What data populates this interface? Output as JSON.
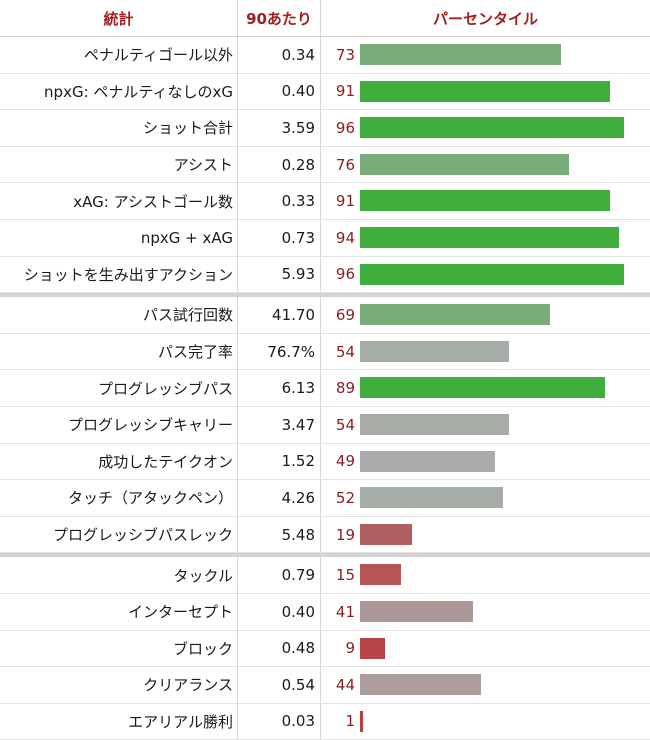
{
  "header": {
    "stat": "統計",
    "per90": "90あたり",
    "percentile": "パーセンタイル"
  },
  "groups": [
    {
      "rows": [
        {
          "stat": "ペナルティゴール以外",
          "per90": "0.34",
          "percentile": 73,
          "color": "#7aab7a"
        },
        {
          "stat": "npxG: ペナルティなしのxG",
          "per90": "0.40",
          "percentile": 91,
          "color": "#3fae3f"
        },
        {
          "stat": "ショット合計",
          "per90": "3.59",
          "percentile": 96,
          "color": "#3fae3f"
        },
        {
          "stat": "アシスト",
          "per90": "0.28",
          "percentile": 76,
          "color": "#7aab7a"
        },
        {
          "stat": "xAG: アシストゴール数",
          "per90": "0.33",
          "percentile": 91,
          "color": "#3fae3f"
        },
        {
          "stat": "npxG + xAG",
          "per90": "0.73",
          "percentile": 94,
          "color": "#3fae3f"
        },
        {
          "stat": "ショットを生み出すアクション",
          "per90": "5.93",
          "percentile": 96,
          "color": "#3fae3f"
        }
      ]
    },
    {
      "rows": [
        {
          "stat": "パス試行回数",
          "per90": "41.70",
          "percentile": 69,
          "color": "#7aab7a"
        },
        {
          "stat": "パス完了率",
          "per90": "76.7%",
          "percentile": 54,
          "color": "#a6aca6"
        },
        {
          "stat": "プログレッシブパス",
          "per90": "6.13",
          "percentile": 89,
          "color": "#3fae3f"
        },
        {
          "stat": "プログレッシブキャリー",
          "per90": "3.47",
          "percentile": 54,
          "color": "#a6aca6"
        },
        {
          "stat": "成功したテイクオン",
          "per90": "1.52",
          "percentile": 49,
          "color": "#ababab"
        },
        {
          "stat": "タッチ（アタックペン）",
          "per90": "4.26",
          "percentile": 52,
          "color": "#a6aca6"
        },
        {
          "stat": "プログレッシブパスレック",
          "per90": "5.48",
          "percentile": 19,
          "color": "#b06060"
        }
      ]
    },
    {
      "rows": [
        {
          "stat": "タックル",
          "per90": "0.79",
          "percentile": 15,
          "color": "#b55555"
        },
        {
          "stat": "インターセプト",
          "per90": "0.40",
          "percentile": 41,
          "color": "#ad9898"
        },
        {
          "stat": "ブロック",
          "per90": "0.48",
          "percentile": 9,
          "color": "#b84545"
        },
        {
          "stat": "クリアランス",
          "per90": "0.54",
          "percentile": 44,
          "color": "#ad9d9d"
        },
        {
          "stat": "エアリアル勝利",
          "per90": "0.03",
          "percentile": 1,
          "color": "#c23a3a"
        }
      ]
    }
  ]
}
